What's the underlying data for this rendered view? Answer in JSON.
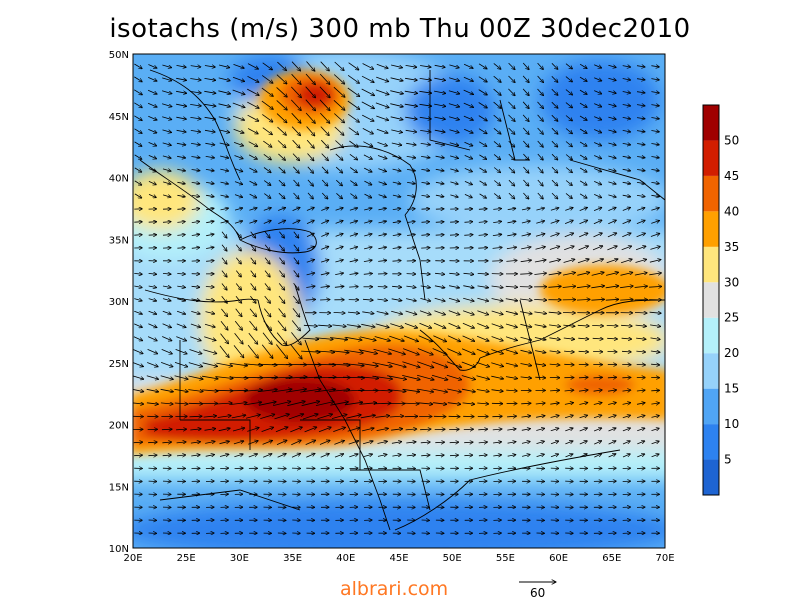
{
  "title": "isotachs (m/s) 300 mb Thu 00Z 30dec2010",
  "watermark": "albrari.com",
  "map": {
    "lon_range": [
      20,
      70
    ],
    "lat_range": [
      10,
      50
    ],
    "lon_ticks": [
      "20E",
      "25E",
      "30E",
      "35E",
      "40E",
      "45E",
      "50E",
      "55E",
      "60E",
      "65E",
      "70E"
    ],
    "lat_ticks": [
      "10N",
      "15N",
      "20N",
      "25N",
      "30N",
      "35N",
      "40N",
      "45N",
      "50N"
    ]
  },
  "colorbar": {
    "labels": [
      "5",
      "10",
      "15",
      "20",
      "25",
      "30",
      "35",
      "40",
      "45",
      "50"
    ],
    "colors": [
      "#1e64d2",
      "#2d82f0",
      "#50a5f5",
      "#96d2fa",
      "#b4f0fa",
      "#e1e1e1",
      "#ffe67d",
      "#ffa000",
      "#f06400",
      "#d21e00",
      "#a00000"
    ]
  },
  "reference_vector": {
    "label": "60"
  },
  "jet_maxima": [
    {
      "lon": 35,
      "lat": 23,
      "speed": 52
    },
    {
      "lon": 42,
      "lat": 25,
      "speed": 48
    },
    {
      "lon": 38,
      "lat": 46.5,
      "speed": 46
    },
    {
      "lon": 64,
      "lat": 31,
      "speed": 38
    }
  ]
}
